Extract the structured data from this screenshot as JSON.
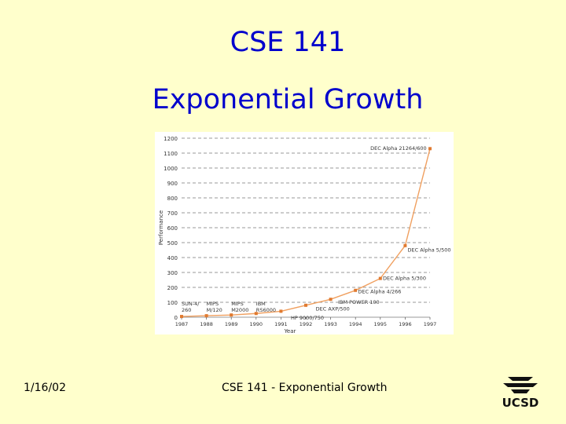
{
  "slide": {
    "course_title": "CSE 141",
    "title": "Exponential Growth",
    "footer_date": "1/16/02",
    "footer_center": "CSE 141 - Exponential Growth",
    "logo_text": "UCSD"
  },
  "colors": {
    "background": "#ffffcc",
    "title": "#0000cc",
    "series": "#f0a060",
    "marker": "#e07a30"
  },
  "chart_data": {
    "type": "line",
    "xlabel": "Year",
    "ylabel": "Performance",
    "xlim": [
      1987,
      1997
    ],
    "ylim": [
      0,
      1200
    ],
    "grid": true,
    "x_ticks": [
      "1987",
      "1988",
      "1989",
      "1990",
      "1991",
      "1992",
      "1993",
      "1994",
      "1995",
      "1996",
      "1997"
    ],
    "y_ticks": [
      0,
      100,
      200,
      300,
      400,
      500,
      600,
      700,
      800,
      900,
      1000,
      1100,
      1200
    ],
    "series": [
      {
        "x": [
          1987,
          1988,
          1989,
          1990,
          1991,
          1992,
          1993,
          1994,
          1995,
          1996,
          1997
        ],
        "y": [
          5,
          10,
          15,
          25,
          40,
          80,
          120,
          180,
          260,
          480,
          1130
        ]
      }
    ],
    "annotations": [
      {
        "lines": [
          "SUN-4/",
          "260"
        ],
        "x": 1987,
        "y": 80,
        "anchor": "start"
      },
      {
        "lines": [
          "MIPS",
          "M/120"
        ],
        "x": 1988,
        "y": 80,
        "anchor": "start"
      },
      {
        "lines": [
          "MIPS",
          "M2000"
        ],
        "x": 1989,
        "y": 80,
        "anchor": "start"
      },
      {
        "lines": [
          "IBM",
          "RS6000"
        ],
        "x": 1990,
        "y": 80,
        "anchor": "start"
      },
      {
        "lines": [
          "HP 9000/750"
        ],
        "x": 1991.4,
        "y": -15,
        "anchor": "start"
      },
      {
        "lines": [
          "DEC AXP/500"
        ],
        "x": 1992.4,
        "y": 45,
        "anchor": "start"
      },
      {
        "lines": [
          "IBM POWER 100"
        ],
        "x": 1993.3,
        "y": 90,
        "anchor": "start"
      },
      {
        "lines": [
          "DEC Alpha 4/266"
        ],
        "x": 1994.1,
        "y": 160,
        "anchor": "start"
      },
      {
        "lines": [
          "DEC Alpha 5/300"
        ],
        "x": 1995.1,
        "y": 250,
        "anchor": "start"
      },
      {
        "lines": [
          "DEC Alpha 5/500"
        ],
        "x": 1996.1,
        "y": 440,
        "anchor": "start"
      },
      {
        "lines": [
          "DEC Alpha 21264/600"
        ],
        "x": 1994.6,
        "y": 1120,
        "anchor": "start"
      }
    ]
  }
}
